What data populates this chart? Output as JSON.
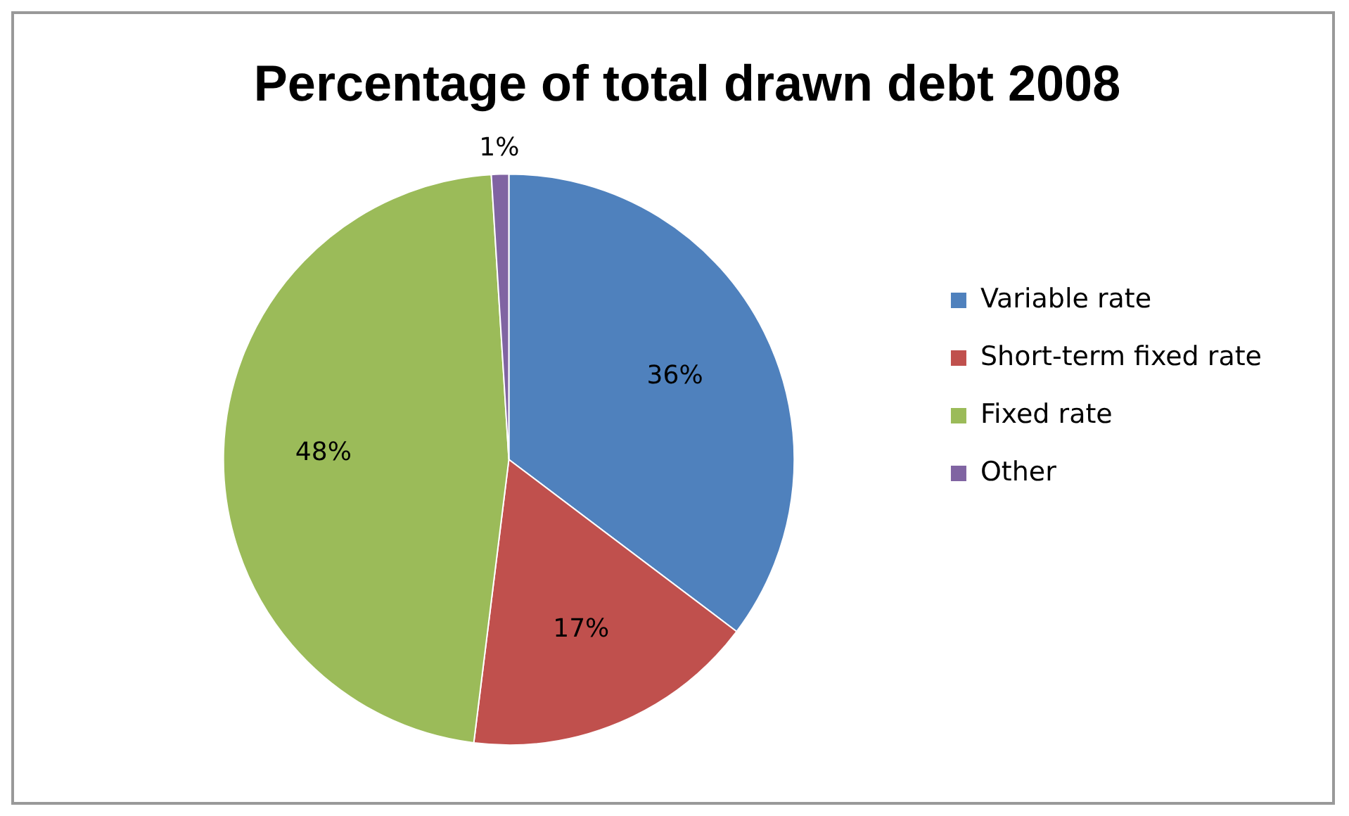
{
  "chart_data": {
    "type": "pie",
    "title": "Percentage of total drawn debt 2008",
    "categories": [
      "Variable rate",
      "Short-term fixed rate",
      "Fixed rate",
      "Other"
    ],
    "values": [
      36,
      17,
      48,
      1
    ],
    "colors": [
      "#4f81bd",
      "#c0504d",
      "#9bbb59",
      "#8064a2"
    ],
    "value_labels": [
      "36%",
      "17%",
      "48%",
      "1%"
    ],
    "legend": "right"
  }
}
